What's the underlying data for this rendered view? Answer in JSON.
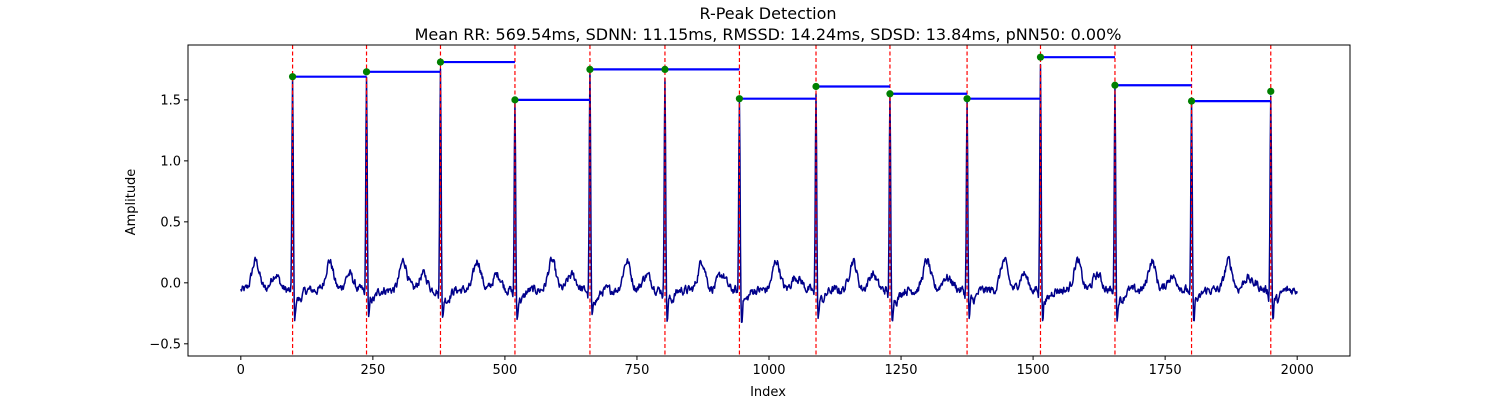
{
  "chart_data": {
    "type": "line",
    "title": "R-Peak Detection",
    "subtitle": "Mean RR: 569.54ms, SDNN: 11.15ms, RMSSD: 14.24ms, SDSD: 13.84ms, pNN50: 0.00%",
    "xlabel": "Index",
    "ylabel": "Amplitude",
    "xlim": [
      -100,
      2100
    ],
    "ylim": [
      -0.6,
      1.95
    ],
    "xticks": [
      0,
      250,
      500,
      750,
      1000,
      1250,
      1500,
      1750,
      2000
    ],
    "yticks": [
      -0.5,
      0.0,
      0.5,
      1.0,
      1.5
    ],
    "xtick_labels": [
      "0",
      "250",
      "500",
      "750",
      "1000",
      "1250",
      "1500",
      "1750",
      "2000"
    ],
    "ytick_labels": [
      "−0.5",
      "0.0",
      "0.5",
      "1.0",
      "1.5"
    ],
    "grid": false,
    "signal": {
      "start": 0,
      "end": 2000,
      "baseline": -0.06,
      "peaks": [
        {
          "x": 98,
          "y": 1.69
        },
        {
          "x": 238,
          "y": 1.73
        },
        {
          "x": 378,
          "y": 1.81
        },
        {
          "x": 519,
          "y": 1.5
        },
        {
          "x": 661,
          "y": 1.75
        },
        {
          "x": 803,
          "y": 1.75
        },
        {
          "x": 944,
          "y": 1.51
        },
        {
          "x": 1089,
          "y": 1.61
        },
        {
          "x": 1229,
          "y": 1.55
        },
        {
          "x": 1375,
          "y": 1.51
        },
        {
          "x": 1514,
          "y": 1.85
        },
        {
          "x": 1655,
          "y": 1.62
        },
        {
          "x": 1800,
          "y": 1.49
        },
        {
          "x": 1950,
          "y": 1.57
        }
      ]
    },
    "rr_segments": [
      {
        "x0": 98,
        "x1": 238,
        "y": 1.69
      },
      {
        "x0": 238,
        "x1": 378,
        "y": 1.73
      },
      {
        "x0": 378,
        "x1": 519,
        "y": 1.81
      },
      {
        "x0": 519,
        "x1": 661,
        "y": 1.5
      },
      {
        "x0": 661,
        "x1": 803,
        "y": 1.75
      },
      {
        "x0": 803,
        "x1": 944,
        "y": 1.75
      },
      {
        "x0": 944,
        "x1": 1089,
        "y": 1.51
      },
      {
        "x0": 1089,
        "x1": 1229,
        "y": 1.61
      },
      {
        "x0": 1229,
        "x1": 1375,
        "y": 1.55
      },
      {
        "x0": 1375,
        "x1": 1514,
        "y": 1.51
      },
      {
        "x0": 1514,
        "x1": 1655,
        "y": 1.85
      },
      {
        "x0": 1655,
        "x1": 1800,
        "y": 1.62
      },
      {
        "x0": 1800,
        "x1": 1950,
        "y": 1.49
      }
    ],
    "colors": {
      "signal": "#00008b",
      "peak_marker": "#008000",
      "peak_line": "#ff0000",
      "rr_line": "#0000ff"
    }
  }
}
